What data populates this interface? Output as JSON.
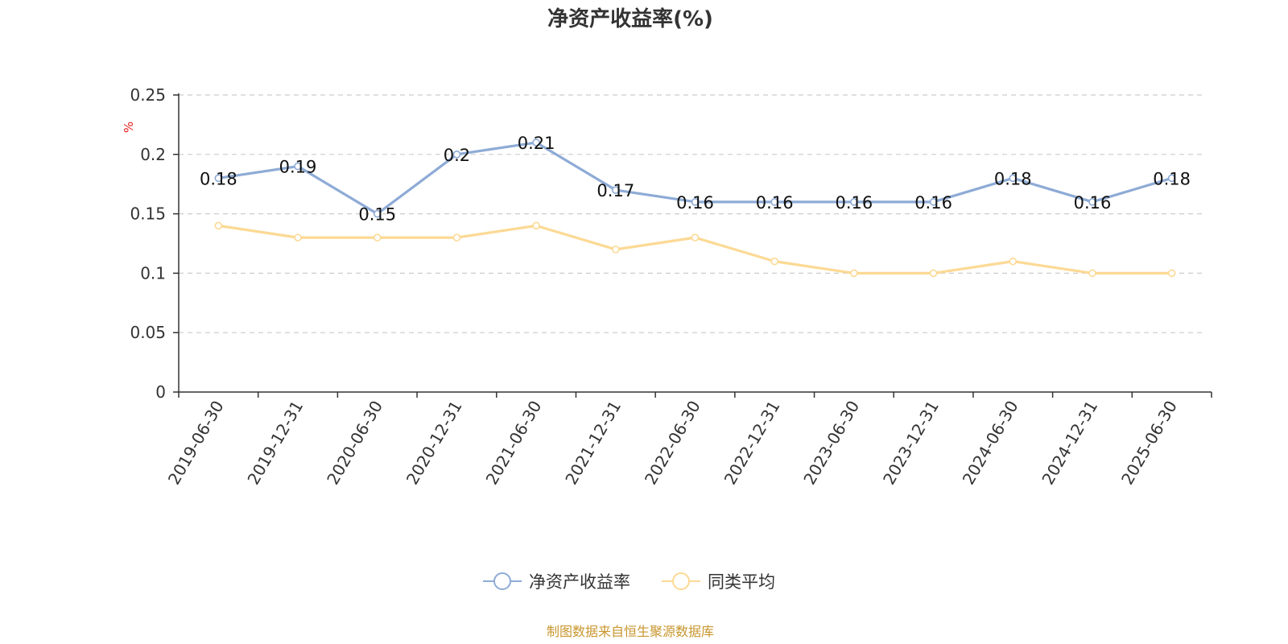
{
  "chart_data": {
    "type": "line",
    "title": "净资产收益率(%)",
    "ylabel": "%",
    "ylim": [
      0,
      0.25
    ],
    "yticks": [
      "0",
      "0.05",
      "0.1",
      "0.15",
      "0.2",
      "0.25"
    ],
    "grid": true,
    "legend_position": "bottom-center",
    "categories": [
      "2019-06-30",
      "2019-12-31",
      "2020-06-30",
      "2020-12-31",
      "2021-06-30",
      "2021-12-31",
      "2022-06-30",
      "2022-12-31",
      "2023-06-30",
      "2023-12-31",
      "2024-06-30",
      "2024-12-31",
      "2025-06-30"
    ],
    "series": [
      {
        "name": "净资产收益率",
        "color": "#8eabd6",
        "show_labels": true,
        "values": [
          0.18,
          0.19,
          0.15,
          0.2,
          0.21,
          0.17,
          0.16,
          0.16,
          0.16,
          0.16,
          0.18,
          0.16,
          0.18
        ],
        "labels": [
          "0.18",
          "0.19",
          "0.15",
          "0.2",
          "0.21",
          "0.17",
          "0.16",
          "0.16",
          "0.16",
          "0.16",
          "0.18",
          "0.16",
          "0.18"
        ]
      },
      {
        "name": "同类平均",
        "color": "#fcd994",
        "show_labels": false,
        "values": [
          0.14,
          0.13,
          0.13,
          0.13,
          0.14,
          0.12,
          0.13,
          0.11,
          0.1,
          0.1,
          0.11,
          0.1,
          0.1
        ]
      }
    ],
    "source": "制图数据来自恒生聚源数据库"
  }
}
